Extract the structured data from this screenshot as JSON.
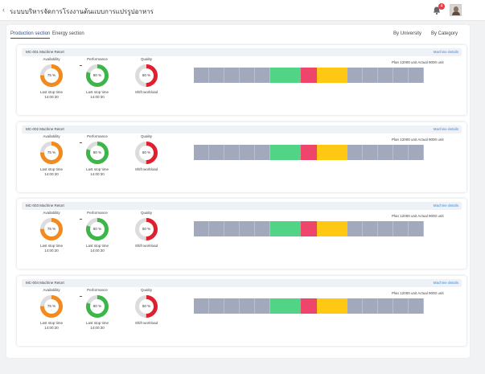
{
  "header": {
    "title": "ระบบบริหารจัดการโรงงานต้นแบบการแปรรูปอาหาร",
    "back_icon": "chevron-left-icon",
    "notification_count": "4"
  },
  "tabs": [
    "Production section",
    "Energy section"
  ],
  "views": [
    "By University",
    "By Category"
  ],
  "colors": {
    "grey": "#a3a9bd",
    "green": "#51d486",
    "red": "#f0456b",
    "yellow": "#ffc812",
    "gauge_orange": "#f28a1e",
    "gauge_green": "#3eb549",
    "gauge_red": "#e0202e"
  },
  "machines": [
    {
      "name": "MC-001 Machine Retort",
      "details_label": "Machine details",
      "availability": {
        "label": "Availability",
        "value_text": "75 %",
        "value": 0.75,
        "sub": "Last stop time",
        "time": "14:00:30"
      },
      "performance": {
        "label": "Performance",
        "value_text": "80 %",
        "value": 0.8,
        "sub": "Last stop time",
        "time": "14:00:30"
      },
      "quality": {
        "label": "Quality",
        "value_text": "50 %",
        "value": 0.5,
        "sub": "Shift workload"
      },
      "plan_text": "Plan 12000 unit",
      "actual_text": "Actual 9000 unit",
      "timeline": [
        "grey",
        "grey",
        "grey",
        "grey",
        "grey",
        "green",
        "green",
        "red",
        "yellow",
        "yellow",
        "grey",
        "grey",
        "grey",
        "grey",
        "grey"
      ]
    },
    {
      "name": "MC-002 Machine Retort",
      "details_label": "Machine details",
      "availability": {
        "label": "Availability",
        "value_text": "75 %",
        "value": 0.75,
        "sub": "Last stop time",
        "time": "14:00:30"
      },
      "performance": {
        "label": "Performance",
        "value_text": "80 %",
        "value": 0.8,
        "sub": "Last stop time",
        "time": "14:00:30"
      },
      "quality": {
        "label": "Quality",
        "value_text": "50 %",
        "value": 0.5,
        "sub": "Shift workload"
      },
      "plan_text": "Plan 12000 unit",
      "actual_text": "Actual 9000 unit",
      "timeline": [
        "grey",
        "grey",
        "grey",
        "grey",
        "grey",
        "green",
        "green",
        "red",
        "yellow",
        "yellow",
        "grey",
        "grey",
        "grey",
        "grey",
        "grey"
      ]
    },
    {
      "name": "MC-003 Machine Retort",
      "details_label": "Machine details",
      "availability": {
        "label": "Availability",
        "value_text": "75 %",
        "value": 0.75,
        "sub": "Last stop time",
        "time": "14:00:30"
      },
      "performance": {
        "label": "Performance",
        "value_text": "80 %",
        "value": 0.8,
        "sub": "Last stop time",
        "time": "14:00:30"
      },
      "quality": {
        "label": "Quality",
        "value_text": "50 %",
        "value": 0.5,
        "sub": "Shift workload"
      },
      "plan_text": "Plan 12000 unit",
      "actual_text": "Actual 9000 unit",
      "timeline": [
        "grey",
        "grey",
        "grey",
        "grey",
        "grey",
        "green",
        "green",
        "red",
        "yellow",
        "yellow",
        "grey",
        "grey",
        "grey",
        "grey",
        "grey"
      ]
    },
    {
      "name": "MC-004 Machine Retort",
      "details_label": "Machine details",
      "availability": {
        "label": "Availability",
        "value_text": "75 %",
        "value": 0.75,
        "sub": "Last stop time",
        "time": "14:00:30"
      },
      "performance": {
        "label": "Performance",
        "value_text": "80 %",
        "value": 0.8,
        "sub": "Last stop time",
        "time": "14:00:30"
      },
      "quality": {
        "label": "Quality",
        "value_text": "50 %",
        "value": 0.5,
        "sub": "Shift workload"
      },
      "plan_text": "Plan 12000 unit",
      "actual_text": "Actual 9000 unit",
      "timeline": [
        "grey",
        "grey",
        "grey",
        "grey",
        "grey",
        "green",
        "green",
        "red",
        "yellow",
        "yellow",
        "grey",
        "grey",
        "grey",
        "grey",
        "grey"
      ]
    }
  ]
}
